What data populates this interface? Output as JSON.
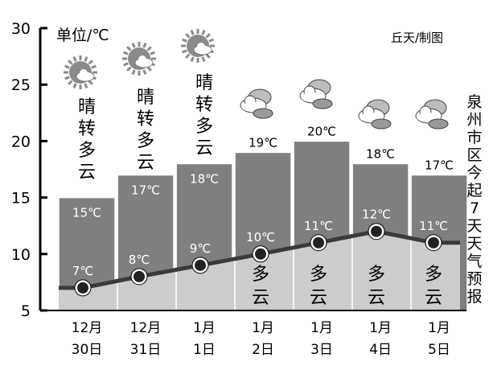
{
  "chart_data": {
    "type": "area",
    "title": "泉州市区今起7天天气预报",
    "unit_label": "单位/℃",
    "credit": "丘天/制图",
    "ylim": [
      5,
      30
    ],
    "yticks": [
      "5",
      "10",
      "15",
      "20",
      "25",
      "30"
    ],
    "days": [
      {
        "month": "12月",
        "day": "30日",
        "high": 15,
        "low": 7,
        "high_label": "15℃",
        "low_label": "7℃",
        "weather": "晴转多云",
        "icon": "sunny-to-cloudy"
      },
      {
        "month": "12月",
        "day": "31日",
        "high": 17,
        "low": 8,
        "high_label": "17℃",
        "low_label": "8℃",
        "weather": "晴转多云",
        "icon": "sunny-to-cloudy"
      },
      {
        "month": "1月",
        "day": "1日",
        "high": 18,
        "low": 9,
        "high_label": "18℃",
        "low_label": "9℃",
        "weather": "晴转多云",
        "icon": "sunny-to-cloudy"
      },
      {
        "month": "1月",
        "day": "2日",
        "high": 19,
        "low": 10,
        "high_label": "19℃",
        "low_label": "10℃",
        "weather": "多云",
        "icon": "cloudy"
      },
      {
        "month": "1月",
        "day": "3日",
        "high": 20,
        "low": 11,
        "high_label": "20℃",
        "low_label": "11℃",
        "weather": "多云",
        "icon": "cloudy"
      },
      {
        "month": "1月",
        "day": "4日",
        "high": 18,
        "low": 12,
        "high_label": "18℃",
        "low_label": "12℃",
        "weather": "多云",
        "icon": "cloudy"
      },
      {
        "month": "1月",
        "day": "5日",
        "high": 17,
        "low": 11,
        "high_label": "17℃",
        "low_label": "11℃",
        "weather": "多云",
        "icon": "cloudy"
      }
    ],
    "colors": {
      "high_band": "#7f7f7f",
      "low_band": "#cccccc",
      "low_line": "#3a3a3a",
      "text_dark": "#000000",
      "text_light": "#ffffff",
      "icon_gray": "#8a8a8a"
    }
  }
}
